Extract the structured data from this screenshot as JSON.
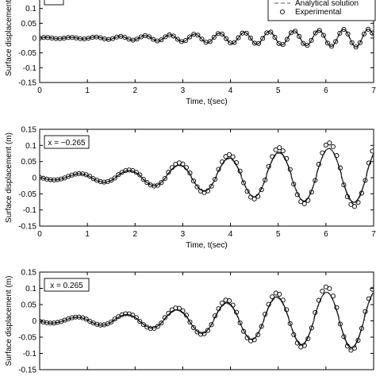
{
  "chart_data": [
    {
      "type": "line",
      "panel": "top",
      "position_label": "",
      "xlabel": "Time, t(sec)",
      "ylabel": "Surface displacement",
      "xlim": [
        0,
        7
      ],
      "ylim": [
        -0.15,
        0.15
      ],
      "x_ticks": [
        0,
        1,
        2,
        3,
        4,
        5,
        6,
        7
      ],
      "y_ticks": [
        "0.1",
        "0.05",
        "0",
        "-0.05",
        "-0.1",
        "-0.15"
      ],
      "y_tick_values": [
        0.1,
        0.05,
        0,
        -0.05,
        -0.1,
        -0.15
      ],
      "show_x_ticklabels": true,
      "show_xlabel": true,
      "legend": {
        "placement": "top-right",
        "entries": [
          {
            "label": "Analytical solution",
            "style": "dashed"
          },
          {
            "label": "Experimental",
            "style": "circle"
          }
        ]
      },
      "series": [
        {
          "style": "solid",
          "x": [
            0,
            0.5,
            1.0,
            1.5,
            2.0,
            2.5,
            3.0,
            3.5,
            4.0,
            4.5,
            5.0,
            5.5,
            6.0,
            6.5,
            7.0
          ],
          "amp": [
            0.002,
            0.002,
            0.003,
            0.005,
            0.007,
            0.01,
            0.012,
            0.015,
            0.018,
            0.02,
            0.023,
            0.025,
            0.027,
            0.03,
            0.03
          ],
          "period": 0.52,
          "phase": 0.0,
          "offset": 0.0
        },
        {
          "label": "Analytical solution",
          "style": "dashed",
          "x": [
            0,
            0.5,
            1.0,
            1.5,
            2.0,
            2.5,
            3.0,
            3.5,
            4.0,
            4.5,
            5.0,
            5.5,
            6.0,
            6.5,
            7.0
          ],
          "amp": [
            0.002,
            0.002,
            0.003,
            0.005,
            0.007,
            0.01,
            0.012,
            0.015,
            0.018,
            0.02,
            0.023,
            0.025,
            0.027,
            0.03,
            0.03
          ],
          "period": 0.52,
          "phase": 0.0,
          "offset": 0.0
        },
        {
          "label": "Experimental",
          "style": "circle",
          "x": [
            0,
            0.5,
            1.0,
            1.5,
            2.0,
            2.5,
            3.0,
            3.5,
            4.0,
            4.5,
            5.0,
            5.5,
            6.0,
            6.5,
            7.0
          ],
          "amp": [
            0.002,
            0.002,
            0.003,
            0.005,
            0.007,
            0.01,
            0.012,
            0.015,
            0.018,
            0.02,
            0.023,
            0.025,
            0.027,
            0.03,
            0.03
          ],
          "period": 0.52,
          "phase": 0.0,
          "offset": 0.0,
          "step": 0.085
        }
      ]
    },
    {
      "type": "line",
      "panel": "middle",
      "position_label": "x = −0.265",
      "xlabel": "Time, t(sec)",
      "ylabel": "Surface displacement (m)",
      "xlim": [
        0,
        7
      ],
      "ylim": [
        -0.15,
        0.15
      ],
      "x_ticks": [
        0,
        1,
        2,
        3,
        4,
        5,
        6,
        7
      ],
      "y_ticks": [
        "0.15",
        "0.1",
        "0.05",
        "0",
        "-0.05",
        "-0.1",
        "-0.15"
      ],
      "y_tick_values": [
        0.15,
        0.1,
        0.05,
        0,
        -0.05,
        -0.1,
        -0.15
      ],
      "show_x_ticklabels": true,
      "show_xlabel": true,
      "series": [
        {
          "style": "solid",
          "x": [
            0,
            0.5,
            1.0,
            1.5,
            2.0,
            2.5,
            3.0,
            3.5,
            4.0,
            4.5,
            5.0,
            5.5,
            6.0,
            6.5,
            7.0
          ],
          "amp": [
            0.006,
            0.008,
            0.012,
            0.016,
            0.02,
            0.028,
            0.035,
            0.045,
            0.055,
            0.062,
            0.07,
            0.075,
            0.08,
            0.08,
            0.08
          ],
          "period": 1.05,
          "phase": 0.55,
          "offset": 0.02
        },
        {
          "label": "Analytical solution",
          "style": "dashed",
          "x": [
            0,
            0.5,
            1.0,
            1.5,
            2.0,
            2.5,
            3.0,
            3.5,
            4.0,
            4.5,
            5.0,
            5.5,
            6.0,
            6.5,
            7.0
          ],
          "amp": [
            0.006,
            0.008,
            0.012,
            0.016,
            0.02,
            0.028,
            0.035,
            0.045,
            0.055,
            0.062,
            0.07,
            0.075,
            0.085,
            0.085,
            0.085
          ],
          "period": 1.05,
          "phase": 0.55,
          "offset": 0.012
        },
        {
          "label": "Experimental",
          "style": "circle",
          "x": [
            0,
            0.5,
            1.0,
            1.5,
            2.0,
            2.5,
            3.0,
            3.5,
            4.0,
            4.5,
            5.0,
            5.5,
            6.0,
            6.5,
            7.0
          ],
          "amp": [
            0.006,
            0.008,
            0.012,
            0.016,
            0.02,
            0.03,
            0.04,
            0.05,
            0.062,
            0.07,
            0.08,
            0.085,
            0.092,
            0.095,
            0.095
          ],
          "period": 1.05,
          "phase": 0.55,
          "offset": 0.03,
          "step": 0.075
        }
      ]
    },
    {
      "type": "line",
      "panel": "bottom",
      "position_label": "x = 0.265",
      "xlabel": "",
      "ylabel": "Surface displacement (m)",
      "xlim": [
        0,
        7
      ],
      "ylim": [
        -0.15,
        0.15
      ],
      "x_ticks": [
        0,
        1,
        2,
        3,
        4,
        5,
        6,
        7
      ],
      "y_ticks": [
        "0.15",
        "0.1",
        "0.05",
        "0",
        "-0.05",
        "-0.1",
        "-0.15"
      ],
      "y_tick_values": [
        0.15,
        0.1,
        0.05,
        0,
        -0.05,
        -0.1,
        -0.15
      ],
      "show_x_ticklabels": false,
      "show_xlabel": false,
      "series": [
        {
          "style": "solid",
          "x": [
            0,
            0.5,
            1.0,
            1.5,
            2.0,
            2.5,
            3.0,
            3.5,
            4.0,
            4.5,
            5.0,
            5.5,
            6.0,
            6.5,
            7.0
          ],
          "amp": [
            0.006,
            0.008,
            0.012,
            0.015,
            0.018,
            0.025,
            0.032,
            0.042,
            0.052,
            0.06,
            0.068,
            0.075,
            0.08,
            0.085,
            0.085
          ],
          "period": 1.05,
          "phase": 0.5,
          "offset": 0.015
        },
        {
          "label": "Analytical solution",
          "style": "dashed",
          "x": [
            0,
            0.5,
            1.0,
            1.5,
            2.0,
            2.5,
            3.0,
            3.5,
            4.0,
            4.5,
            5.0,
            5.5,
            6.0,
            6.5,
            7.0
          ],
          "amp": [
            0.006,
            0.008,
            0.012,
            0.015,
            0.018,
            0.025,
            0.032,
            0.042,
            0.052,
            0.06,
            0.068,
            0.078,
            0.085,
            0.09,
            0.09
          ],
          "period": 1.05,
          "phase": 0.5,
          "offset": 0.006
        },
        {
          "label": "Experimental",
          "style": "circle",
          "x": [
            0,
            0.5,
            1.0,
            1.5,
            2.0,
            2.5,
            3.0,
            3.5,
            4.0,
            4.5,
            5.0,
            5.5,
            6.0,
            6.5,
            7.0
          ],
          "amp": [
            0.006,
            0.008,
            0.012,
            0.015,
            0.02,
            0.028,
            0.036,
            0.046,
            0.058,
            0.066,
            0.076,
            0.085,
            0.092,
            0.095,
            0.095
          ],
          "period": 1.05,
          "phase": 0.5,
          "offset": 0.025,
          "step": 0.075
        }
      ]
    }
  ]
}
